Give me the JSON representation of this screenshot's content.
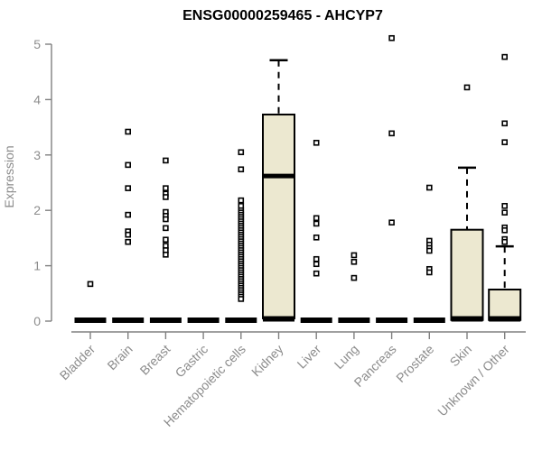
{
  "chart_data": {
    "type": "boxplot",
    "title": "ENSG00000259465 - AHCYP7",
    "ylabel": "Expression",
    "xlabel": "",
    "ylim": [
      0,
      5
    ],
    "yticks": [
      0,
      1,
      2,
      3,
      4,
      5
    ],
    "grid": false,
    "legend": "none",
    "title_color": "#000000",
    "axis_color": "#808080",
    "tick_label_color": "#8c8c8c",
    "box_fill_color": "#ece8d0",
    "box_border_color": "#000000",
    "categories": [
      "Bladder",
      "Brain",
      "Breast",
      "Gastric",
      "Hematopoietic cells",
      "Kidney",
      "Liver",
      "Lung",
      "Pancreas",
      "Prostate",
      "Skin",
      "Unknown / Other"
    ],
    "series": [
      {
        "category": "Bladder",
        "q1": 0,
        "median": 0,
        "q3": 0,
        "whisker_low": 0,
        "whisker_high": 0,
        "outliers": [
          0.67
        ]
      },
      {
        "category": "Brain",
        "q1": 0,
        "median": 0,
        "q3": 0,
        "whisker_low": 0,
        "whisker_high": 0,
        "outliers": [
          3.42,
          2.82,
          2.4,
          1.92,
          1.62,
          1.56,
          1.43
        ]
      },
      {
        "category": "Breast",
        "q1": 0,
        "median": 0,
        "q3": 0,
        "whisker_low": 0,
        "whisker_high": 0,
        "outliers": [
          2.9,
          2.4,
          2.3,
          2.24,
          1.97,
          1.9,
          1.84,
          1.68,
          1.47,
          1.36,
          1.28,
          1.2
        ]
      },
      {
        "category": "Gastric",
        "q1": 0,
        "median": 0,
        "q3": 0,
        "whisker_low": 0,
        "whisker_high": 0,
        "outliers": []
      },
      {
        "category": "Hematopoietic cells",
        "q1": 0,
        "median": 0,
        "q3": 0,
        "whisker_low": 0,
        "whisker_high": 0,
        "outliers": [
          3.05,
          2.74,
          2.18,
          2.08,
          2.0,
          1.96,
          1.92,
          1.88,
          1.84,
          1.8,
          1.76,
          1.72,
          1.68,
          1.64,
          1.6,
          1.56,
          1.52,
          1.48,
          1.44,
          1.4,
          1.36,
          1.32,
          1.28,
          1.24,
          1.2,
          1.16,
          1.12,
          1.08,
          1.04,
          1.0,
          0.96,
          0.92,
          0.88,
          0.84,
          0.8,
          0.76,
          0.72,
          0.68,
          0.64,
          0.6,
          0.56,
          0.52,
          0.48,
          0.44,
          0.4
        ]
      },
      {
        "category": "Kidney",
        "q1": 0.05,
        "median": 2.62,
        "q3": 3.73,
        "whisker_low": 0.05,
        "whisker_high": 4.71,
        "outliers": []
      },
      {
        "category": "Liver",
        "q1": 0,
        "median": 0,
        "q3": 0,
        "whisker_low": 0,
        "whisker_high": 0,
        "outliers": [
          3.22,
          1.86,
          1.76,
          1.51,
          1.12,
          1.03,
          0.86
        ]
      },
      {
        "category": "Lung",
        "q1": 0,
        "median": 0,
        "q3": 0,
        "whisker_low": 0,
        "whisker_high": 0,
        "outliers": [
          1.19,
          1.07,
          0.78
        ]
      },
      {
        "category": "Pancreas",
        "q1": 0,
        "median": 0,
        "q3": 0,
        "whisker_low": 0,
        "whisker_high": 0,
        "outliers": [
          5.11,
          3.39,
          1.78
        ]
      },
      {
        "category": "Prostate",
        "q1": 0,
        "median": 0,
        "q3": 0,
        "whisker_low": 0,
        "whisker_high": 0,
        "outliers": [
          2.41,
          1.45,
          1.38,
          1.32,
          1.27,
          0.94,
          0.88
        ]
      },
      {
        "category": "Skin",
        "q1": 0.02,
        "median": 0.03,
        "q3": 1.65,
        "whisker_low": 0.02,
        "whisker_high": 2.77,
        "outliers": [
          4.22
        ]
      },
      {
        "category": "Unknown / Other",
        "q1": 0.02,
        "median": 0.03,
        "q3": 0.57,
        "whisker_low": 0.02,
        "whisker_high": 1.35,
        "outliers": [
          4.77,
          3.57,
          3.23,
          2.08,
          1.96,
          1.69,
          1.64,
          1.48,
          1.43
        ]
      }
    ]
  }
}
